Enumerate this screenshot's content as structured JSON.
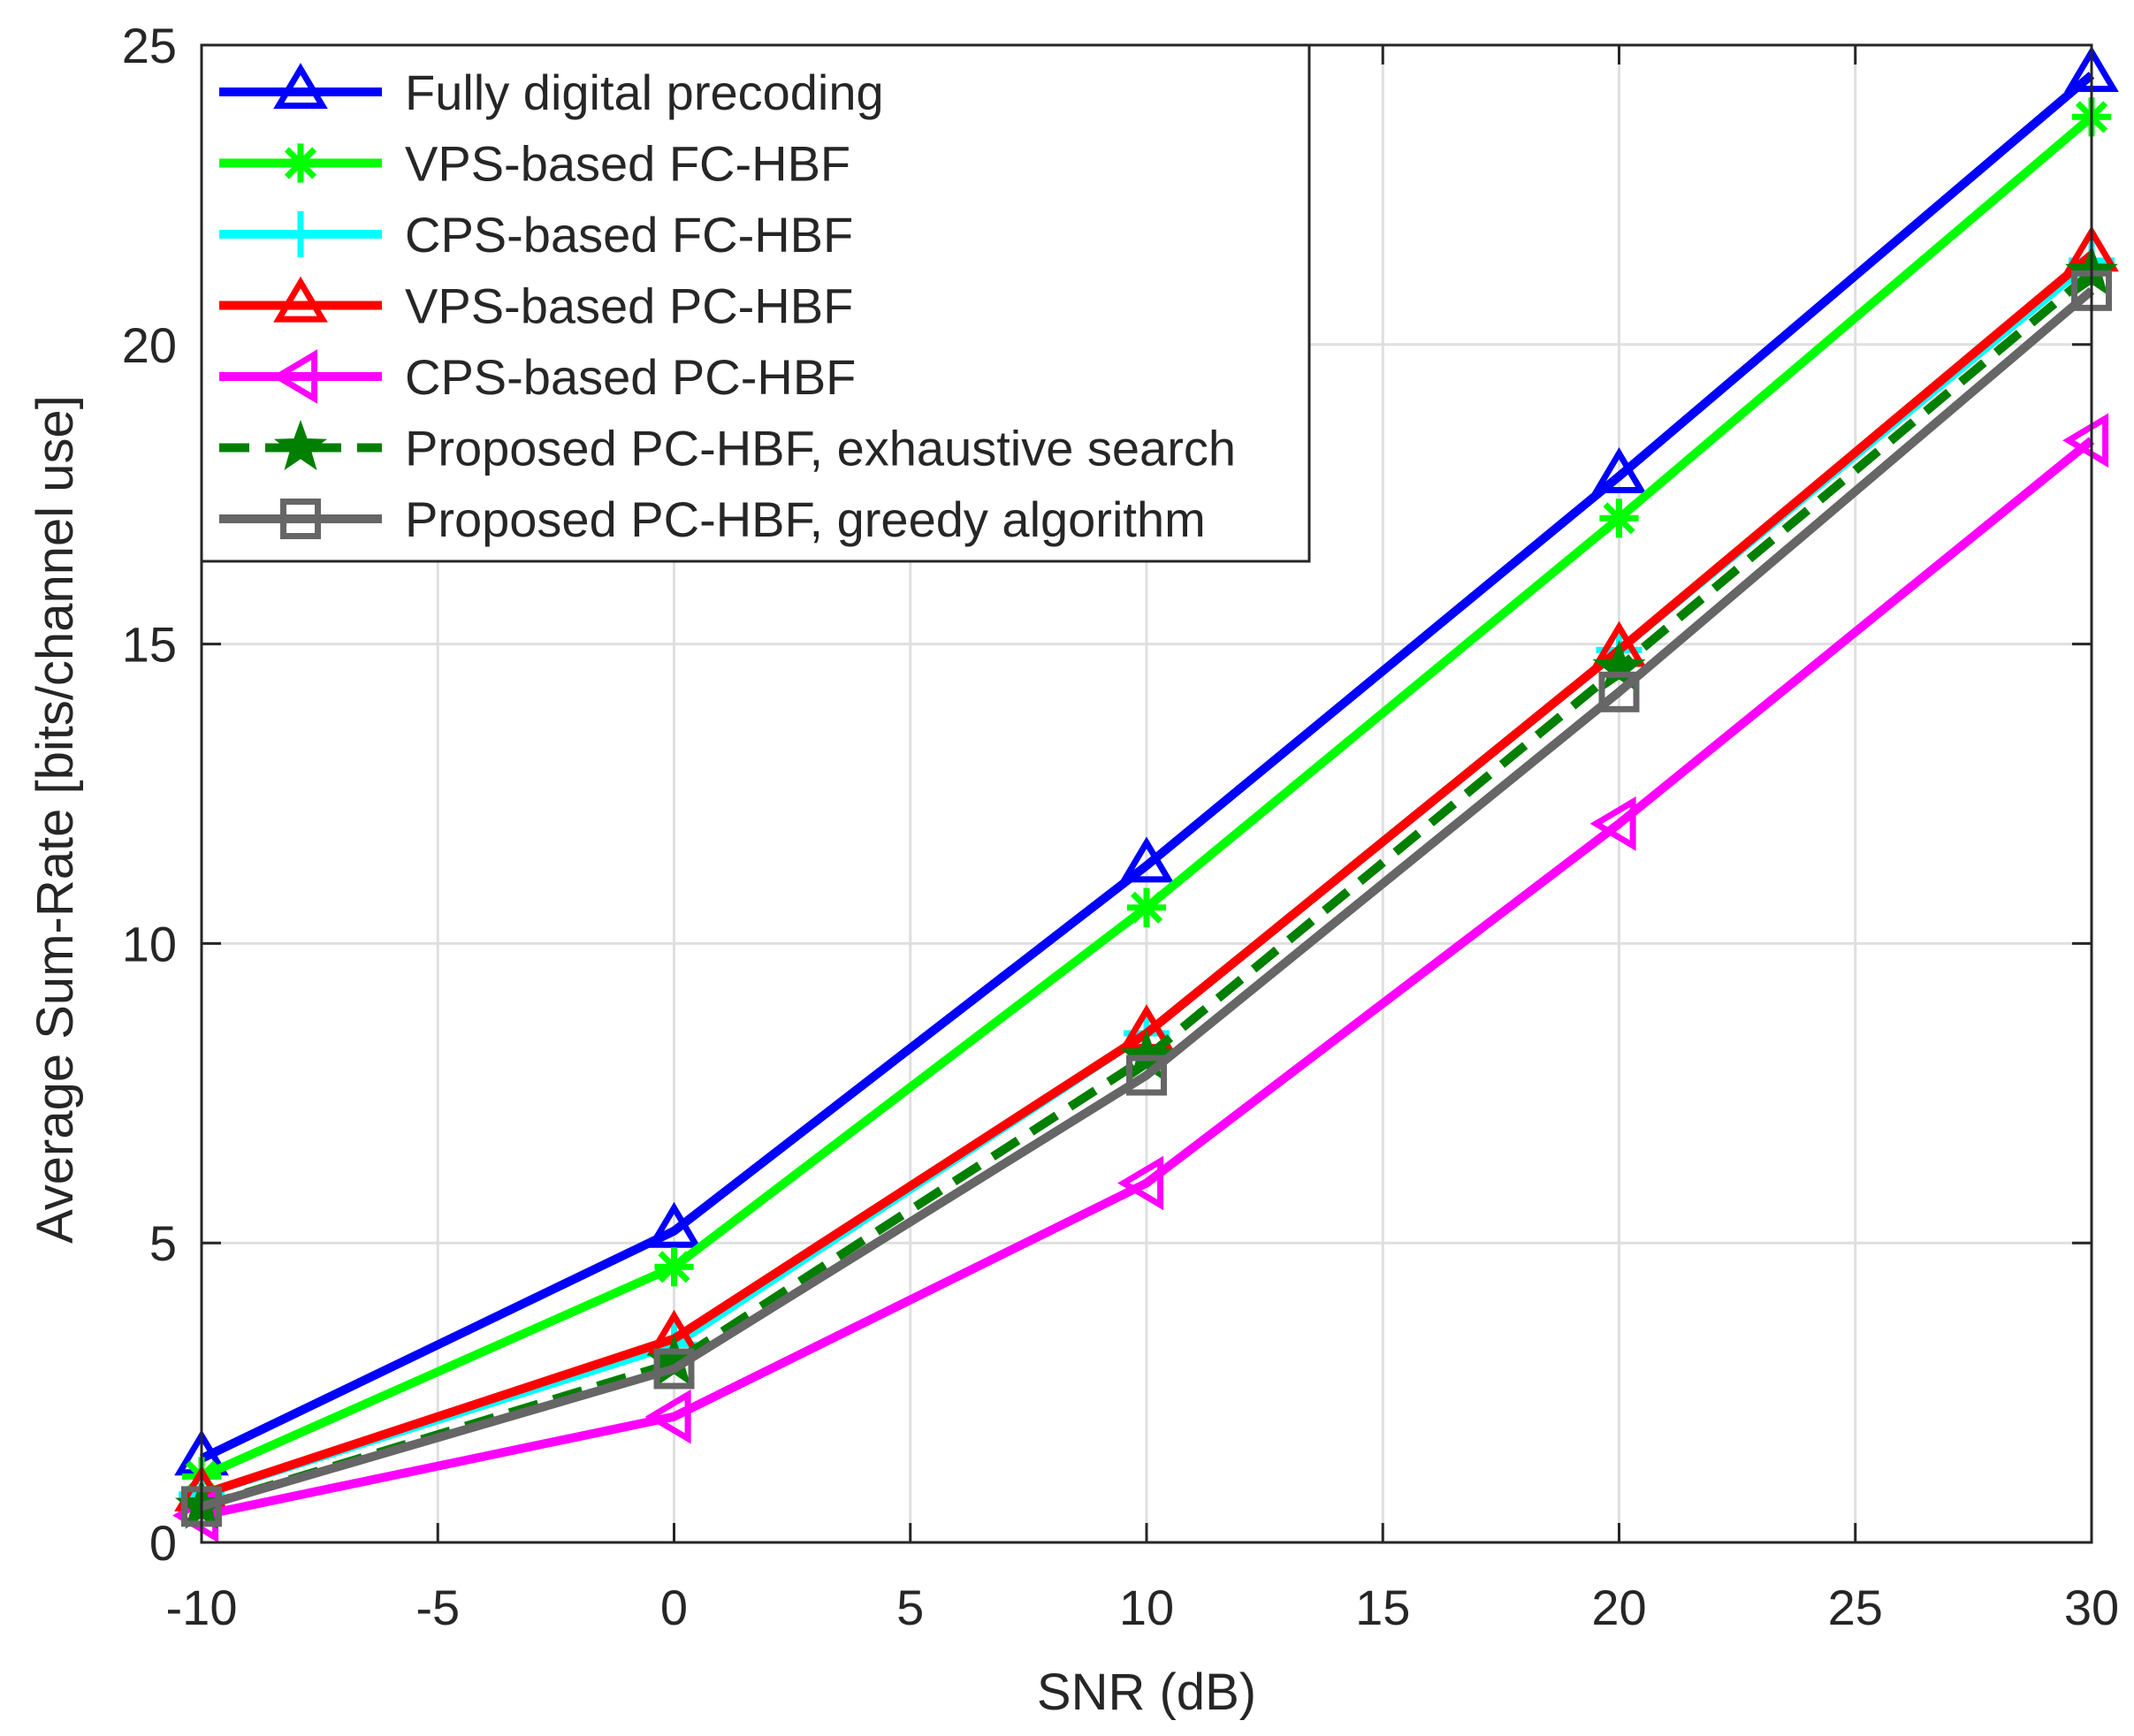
{
  "chart_data": {
    "type": "line",
    "title": "",
    "xlabel": "SNR (dB)",
    "ylabel": "Average Sum-Rate [bits/channel use]",
    "xlim": [
      -10,
      30
    ],
    "ylim": [
      0,
      25
    ],
    "xticks": [
      -10,
      -5,
      0,
      5,
      10,
      15,
      20,
      25,
      30
    ],
    "yticks": [
      0,
      5,
      10,
      15,
      20,
      25
    ],
    "grid": true,
    "legend_position": "top-left",
    "x": [
      -10,
      0,
      10,
      20,
      30
    ],
    "series": [
      {
        "name": "Fully digital precoding",
        "values": [
          1.4,
          5.2,
          11.3,
          17.8,
          24.5
        ],
        "color": "#0000FF",
        "marker": "triangle-up",
        "dash": "solid"
      },
      {
        "name": "VPS-based FC-HBF",
        "values": [
          1.1,
          4.6,
          10.6,
          17.1,
          23.8
        ],
        "color": "#00FF00",
        "marker": "asterisk",
        "dash": "solid"
      },
      {
        "name": "CPS-based FC-HBF",
        "values": [
          0.8,
          3.3,
          8.5,
          14.9,
          21.4
        ],
        "color": "#00FFFF",
        "marker": "plus",
        "dash": "solid"
      },
      {
        "name": "VPS-based PC-HBF",
        "values": [
          0.8,
          3.4,
          8.5,
          14.9,
          21.5
        ],
        "color": "#FF0000",
        "marker": "triangle-up",
        "dash": "solid"
      },
      {
        "name": "CPS-based PC-HBF",
        "values": [
          0.45,
          2.1,
          6.0,
          12.0,
          18.4
        ],
        "color": "#FF00FF",
        "marker": "triangle-left",
        "dash": "solid"
      },
      {
        "name": "Proposed PC-HBF, exhaustive search",
        "values": [
          0.6,
          3.0,
          8.1,
          14.6,
          21.2
        ],
        "color": "#007F00",
        "marker": "star",
        "dash": "dashed"
      },
      {
        "name": "Proposed PC-HBF, greedy algorithm",
        "values": [
          0.6,
          2.9,
          7.8,
          14.2,
          20.9
        ],
        "color": "#666666",
        "marker": "square",
        "dash": "solid"
      }
    ]
  }
}
